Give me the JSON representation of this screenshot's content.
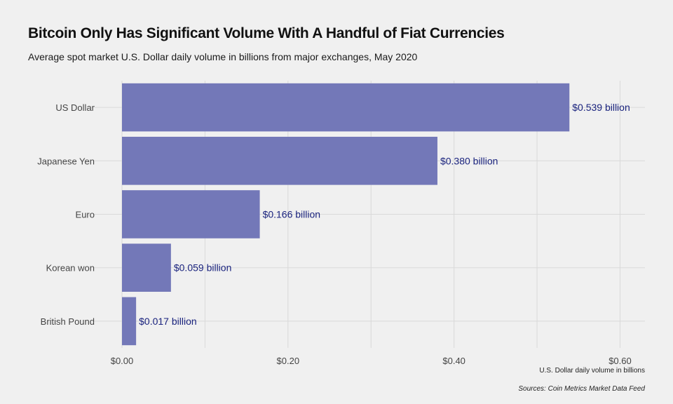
{
  "chart_data": {
    "type": "bar",
    "orientation": "horizontal",
    "title": "Bitcoin Only Has Significant Volume With A Handful of Fiat Currencies",
    "subtitle": "Average spot market U.S. Dollar daily volume in billions from major exchanges, May 2020",
    "categories": [
      "US Dollar",
      "Japanese Yen",
      "Euro",
      "Korean won",
      "British Pound"
    ],
    "values": [
      0.539,
      0.38,
      0.166,
      0.059,
      0.017
    ],
    "data_labels": [
      "$0.539 billion",
      "$0.380 billion",
      "$0.166 billion",
      "$0.059 billion",
      "$0.017 billion"
    ],
    "xlim": [
      0,
      0.63
    ],
    "xticks": [
      0,
      0.2,
      0.4,
      0.6
    ],
    "xtick_labels": [
      "$0.00",
      "$0.20",
      "$0.40",
      "$0.60"
    ],
    "xlabel": "U.S. Dollar daily volume in billions",
    "ylabel": "",
    "caption": "Sources: Coin Metrics Market Data Feed",
    "grid": true,
    "bar_color": "#7378b8",
    "label_color": "#1a237e"
  }
}
